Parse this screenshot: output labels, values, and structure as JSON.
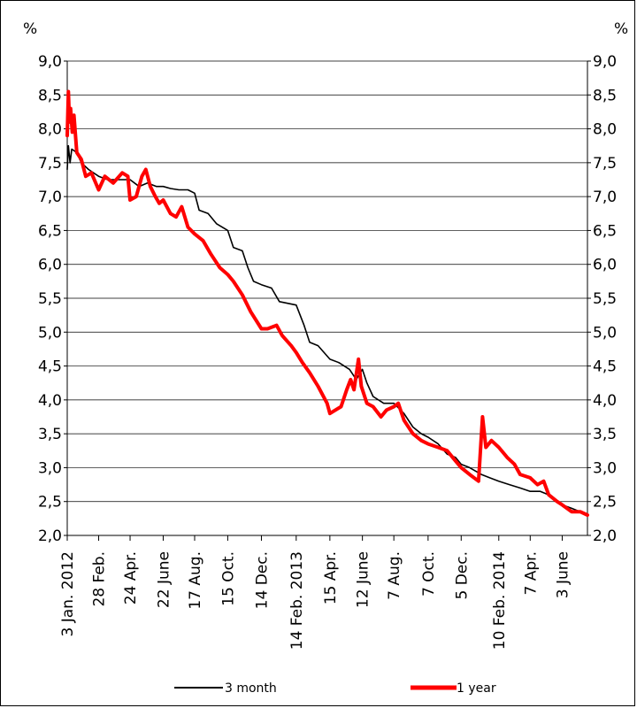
{
  "chart_data": {
    "type": "line",
    "title": "",
    "y_unit_left": "%",
    "y_unit_right": "%",
    "ylim": [
      2.0,
      9.0
    ],
    "y_ticks": [
      "2,0",
      "2,5",
      "3,0",
      "3,5",
      "4,0",
      "4,5",
      "5,0",
      "5,5",
      "6,0",
      "6,5",
      "7,0",
      "7,5",
      "8,0",
      "8,5",
      "9,0"
    ],
    "x_tick_labels": [
      "3 Jan. 2012",
      "28 Feb.",
      "24 Apr.",
      "22 June",
      "17 Aug.",
      "15 Oct.",
      "14 Dec.",
      "14 Feb. 2013",
      "15 Apr.",
      "12 June",
      "7 Aug.",
      "7 Oct.",
      "5 Dec.",
      "10 Feb. 2014",
      "7 Apr.",
      "3 June"
    ],
    "x_tick_dates": [
      "2012-01-03",
      "2012-02-28",
      "2012-04-24",
      "2012-06-22",
      "2012-08-17",
      "2012-10-15",
      "2012-12-14",
      "2013-02-14",
      "2013-04-15",
      "2013-06-12",
      "2013-08-07",
      "2013-10-07",
      "2013-12-05",
      "2014-02-10",
      "2014-04-07",
      "2014-06-03"
    ],
    "x_range": [
      "2012-01-03",
      "2014-07-18"
    ],
    "grid": "horizontal",
    "legend_position": "bottom",
    "series": [
      {
        "name": "3 month",
        "color": "#000000",
        "points": [
          [
            "2012-01-03",
            7.4
          ],
          [
            "2012-01-05",
            7.75
          ],
          [
            "2012-01-08",
            7.5
          ],
          [
            "2012-01-11",
            7.7
          ],
          [
            "2012-01-20",
            7.65
          ],
          [
            "2012-01-28",
            7.5
          ],
          [
            "2012-02-10",
            7.4
          ],
          [
            "2012-02-28",
            7.3
          ],
          [
            "2012-03-15",
            7.25
          ],
          [
            "2012-04-01",
            7.25
          ],
          [
            "2012-04-24",
            7.25
          ],
          [
            "2012-05-10",
            7.15
          ],
          [
            "2012-05-25",
            7.2
          ],
          [
            "2012-06-10",
            7.15
          ],
          [
            "2012-06-22",
            7.15
          ],
          [
            "2012-07-05",
            7.12
          ],
          [
            "2012-07-20",
            7.1
          ],
          [
            "2012-08-05",
            7.1
          ],
          [
            "2012-08-17",
            7.05
          ],
          [
            "2012-08-25",
            6.8
          ],
          [
            "2012-09-10",
            6.75
          ],
          [
            "2012-09-25",
            6.6
          ],
          [
            "2012-10-15",
            6.5
          ],
          [
            "2012-10-25",
            6.25
          ],
          [
            "2012-11-10",
            6.2
          ],
          [
            "2012-11-20",
            5.95
          ],
          [
            "2012-11-30",
            5.75
          ],
          [
            "2012-12-14",
            5.7
          ],
          [
            "2013-01-01",
            5.65
          ],
          [
            "2013-01-15",
            5.45
          ],
          [
            "2013-02-14",
            5.4
          ],
          [
            "2013-02-28",
            5.1
          ],
          [
            "2013-03-10",
            4.85
          ],
          [
            "2013-03-25",
            4.8
          ],
          [
            "2013-04-15",
            4.6
          ],
          [
            "2013-05-01",
            4.55
          ],
          [
            "2013-05-20",
            4.45
          ],
          [
            "2013-06-01",
            4.3
          ],
          [
            "2013-06-12",
            4.45
          ],
          [
            "2013-06-20",
            4.25
          ],
          [
            "2013-07-01",
            4.05
          ],
          [
            "2013-07-20",
            3.95
          ],
          [
            "2013-08-07",
            3.95
          ],
          [
            "2013-08-25",
            3.8
          ],
          [
            "2013-09-10",
            3.6
          ],
          [
            "2013-09-25",
            3.5
          ],
          [
            "2013-10-07",
            3.45
          ],
          [
            "2013-10-25",
            3.35
          ],
          [
            "2013-11-10",
            3.2
          ],
          [
            "2013-11-25",
            3.15
          ],
          [
            "2013-12-05",
            3.05
          ],
          [
            "2013-12-20",
            3.0
          ],
          [
            "2014-01-10",
            2.9
          ],
          [
            "2014-01-25",
            2.85
          ],
          [
            "2014-02-10",
            2.8
          ],
          [
            "2014-03-01",
            2.75
          ],
          [
            "2014-03-20",
            2.7
          ],
          [
            "2014-04-07",
            2.65
          ],
          [
            "2014-04-25",
            2.65
          ],
          [
            "2014-05-10",
            2.6
          ],
          [
            "2014-05-25",
            2.5
          ],
          [
            "2014-06-03",
            2.45
          ],
          [
            "2014-06-20",
            2.4
          ],
          [
            "2014-07-05",
            2.35
          ],
          [
            "2014-07-18",
            2.3
          ]
        ]
      },
      {
        "name": "1 year",
        "color": "#ff0000",
        "points": [
          [
            "2012-01-03",
            7.9
          ],
          [
            "2012-01-05",
            8.55
          ],
          [
            "2012-01-07",
            8.1
          ],
          [
            "2012-01-09",
            8.3
          ],
          [
            "2012-01-12",
            7.95
          ],
          [
            "2012-01-15",
            8.2
          ],
          [
            "2012-01-20",
            7.65
          ],
          [
            "2012-01-28",
            7.55
          ],
          [
            "2012-02-05",
            7.3
          ],
          [
            "2012-02-15",
            7.35
          ],
          [
            "2012-02-28",
            7.1
          ],
          [
            "2012-03-10",
            7.3
          ],
          [
            "2012-03-25",
            7.2
          ],
          [
            "2012-04-10",
            7.35
          ],
          [
            "2012-04-20",
            7.3
          ],
          [
            "2012-04-24",
            6.95
          ],
          [
            "2012-05-05",
            7.0
          ],
          [
            "2012-05-15",
            7.3
          ],
          [
            "2012-05-22",
            7.4
          ],
          [
            "2012-05-30",
            7.15
          ],
          [
            "2012-06-08",
            7.0
          ],
          [
            "2012-06-15",
            6.9
          ],
          [
            "2012-06-22",
            6.95
          ],
          [
            "2012-07-05",
            6.75
          ],
          [
            "2012-07-15",
            6.7
          ],
          [
            "2012-07-25",
            6.85
          ],
          [
            "2012-08-05",
            6.55
          ],
          [
            "2012-08-17",
            6.45
          ],
          [
            "2012-09-01",
            6.35
          ],
          [
            "2012-09-15",
            6.15
          ],
          [
            "2012-10-01",
            5.95
          ],
          [
            "2012-10-15",
            5.85
          ],
          [
            "2012-10-25",
            5.75
          ],
          [
            "2012-11-10",
            5.55
          ],
          [
            "2012-11-25",
            5.3
          ],
          [
            "2012-12-14",
            5.05
          ],
          [
            "2012-12-25",
            5.05
          ],
          [
            "2013-01-10",
            5.1
          ],
          [
            "2013-01-20",
            4.95
          ],
          [
            "2013-02-05",
            4.8
          ],
          [
            "2013-02-14",
            4.7
          ],
          [
            "2013-02-25",
            4.55
          ],
          [
            "2013-03-10",
            4.4
          ],
          [
            "2013-03-25",
            4.2
          ],
          [
            "2013-04-10",
            3.95
          ],
          [
            "2013-04-15",
            3.8
          ],
          [
            "2013-04-25",
            3.85
          ],
          [
            "2013-05-05",
            3.9
          ],
          [
            "2013-05-15",
            4.15
          ],
          [
            "2013-05-22",
            4.3
          ],
          [
            "2013-05-28",
            4.15
          ],
          [
            "2013-06-05",
            4.6
          ],
          [
            "2013-06-10",
            4.2
          ],
          [
            "2013-06-20",
            3.95
          ],
          [
            "2013-07-01",
            3.9
          ],
          [
            "2013-07-15",
            3.75
          ],
          [
            "2013-07-25",
            3.85
          ],
          [
            "2013-08-07",
            3.9
          ],
          [
            "2013-08-15",
            3.95
          ],
          [
            "2013-08-25",
            3.7
          ],
          [
            "2013-09-10",
            3.5
          ],
          [
            "2013-09-25",
            3.4
          ],
          [
            "2013-10-07",
            3.35
          ],
          [
            "2013-10-25",
            3.3
          ],
          [
            "2013-11-10",
            3.25
          ],
          [
            "2013-11-25",
            3.1
          ],
          [
            "2013-12-05",
            3.0
          ],
          [
            "2013-12-20",
            2.9
          ],
          [
            "2014-01-05",
            2.8
          ],
          [
            "2014-01-12",
            3.75
          ],
          [
            "2014-01-18",
            3.3
          ],
          [
            "2014-01-28",
            3.4
          ],
          [
            "2014-02-10",
            3.3
          ],
          [
            "2014-02-25",
            3.15
          ],
          [
            "2014-03-10",
            3.05
          ],
          [
            "2014-03-20",
            2.9
          ],
          [
            "2014-04-07",
            2.85
          ],
          [
            "2014-04-20",
            2.75
          ],
          [
            "2014-05-01",
            2.8
          ],
          [
            "2014-05-10",
            2.6
          ],
          [
            "2014-05-25",
            2.5
          ],
          [
            "2014-06-03",
            2.45
          ],
          [
            "2014-06-20",
            2.35
          ],
          [
            "2014-07-05",
            2.35
          ],
          [
            "2014-07-18",
            2.3
          ]
        ]
      }
    ]
  }
}
